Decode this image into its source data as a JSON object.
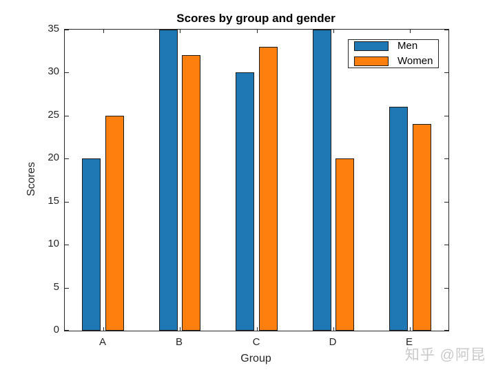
{
  "chart_data": {
    "type": "bar",
    "title": "Scores by group and gender",
    "xlabel": "Group",
    "ylabel": "Scores",
    "categories": [
      "A",
      "B",
      "C",
      "D",
      "E"
    ],
    "series": [
      {
        "name": "Men",
        "color": "#1f77b4",
        "values": [
          20,
          35,
          30,
          35,
          26
        ]
      },
      {
        "name": "Women",
        "color": "#ff7f0e",
        "values": [
          25,
          32,
          33,
          20,
          24
        ]
      }
    ],
    "ylim": [
      0,
      35
    ],
    "yticks": [
      0,
      5,
      10,
      15,
      20,
      25,
      30,
      35
    ],
    "bar_edge_color": "#1a1a1a",
    "axis_color": "#262626",
    "grid": false,
    "legend_position": "top-right",
    "legend_entries": [
      "Men",
      "Women"
    ]
  },
  "watermark": {
    "text": "知乎 @阿昆",
    "color": "#c9c9c9"
  }
}
